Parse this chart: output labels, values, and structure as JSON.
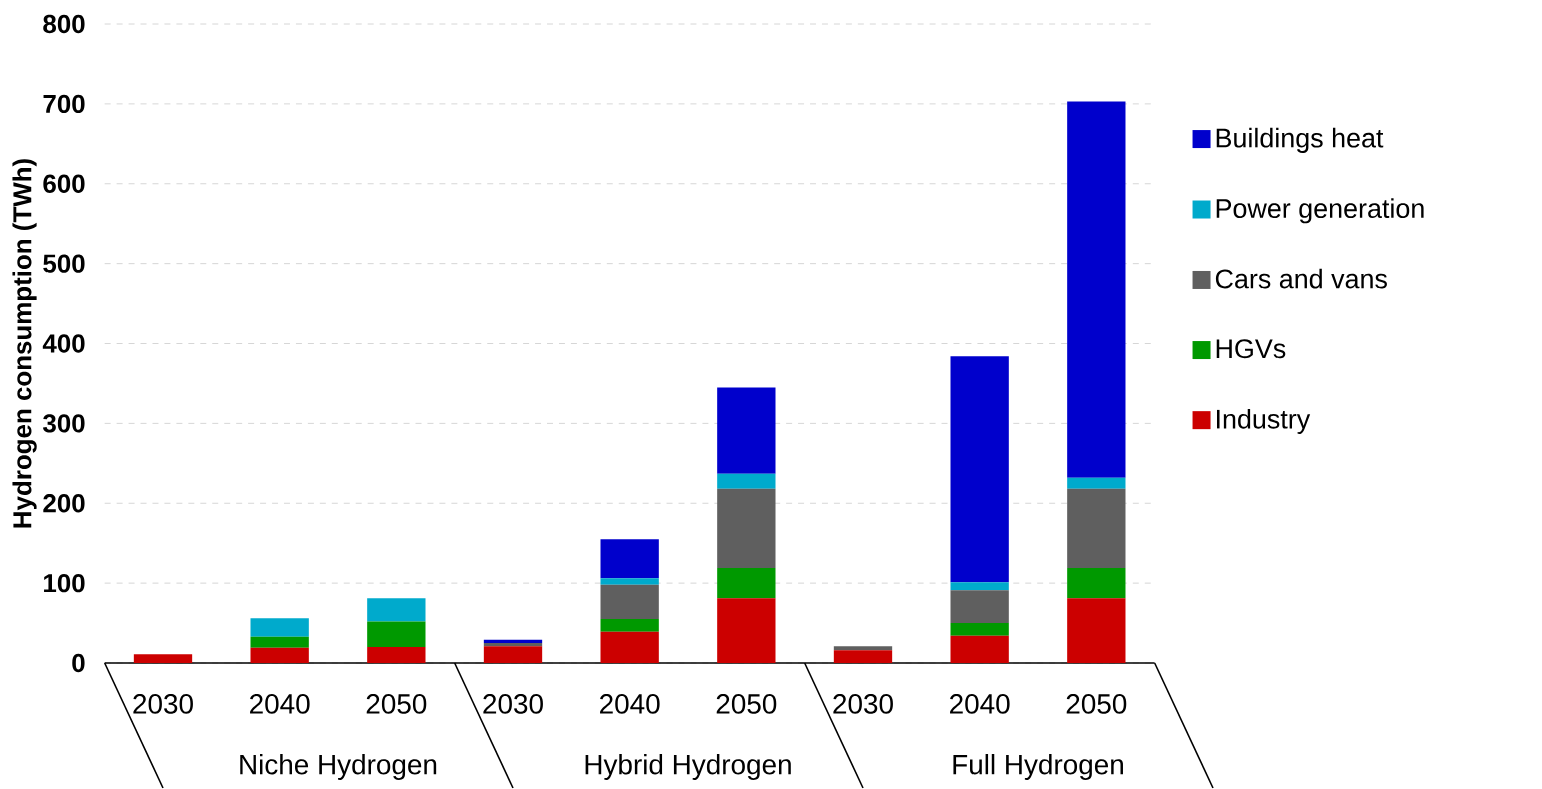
{
  "chart_data": {
    "type": "bar",
    "stacked": true,
    "ylabel": "Hydrogen consumption (TWh)",
    "categories": [
      "2030",
      "2040",
      "2050",
      "2030",
      "2040",
      "2050",
      "2030",
      "2040",
      "2050"
    ],
    "annotations": [
      "Niche Hydrogen",
      "Hybrid Hydrogen",
      "Full Hydrogen"
    ],
    "series": [
      {
        "name": "Industry",
        "color": "#cc0000",
        "values": [
          11,
          19,
          20,
          21,
          39,
          81,
          16,
          34,
          81
        ]
      },
      {
        "name": "HGVs",
        "color": "#009900",
        "values": [
          0,
          14,
          32,
          0,
          16,
          38,
          0,
          16,
          38
        ]
      },
      {
        "name": "Cars and vans",
        "color": "#5f5f5f",
        "values": [
          0,
          0,
          0,
          4,
          43,
          99,
          5,
          41,
          99
        ]
      },
      {
        "name": "Power generation",
        "color": "#00aacc",
        "values": [
          0,
          23,
          29,
          0,
          8,
          19,
          0,
          10,
          14
        ]
      },
      {
        "name": "Buildings heat",
        "color": "#0000cc",
        "values": [
          0,
          0,
          0,
          4,
          49,
          108,
          0,
          283,
          471
        ]
      }
    ],
    "ylim": [
      0,
      800
    ],
    "yticks": [
      0,
      100,
      200,
      300,
      400,
      500,
      600,
      700,
      800
    ],
    "grid": "y",
    "legend": "right"
  }
}
